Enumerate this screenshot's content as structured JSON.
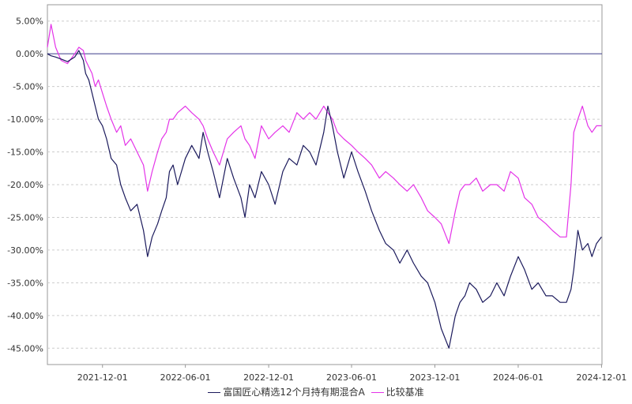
{
  "chart_data": {
    "type": "line",
    "title": "",
    "xlabel": "",
    "ylabel": "",
    "x_ticks": [
      "2021-12-01",
      "2022-06-01",
      "2022-12-01",
      "2023-06-01",
      "2023-12-01",
      "2024-06-01",
      "2024-12-01"
    ],
    "x_range": [
      "2021-08-02",
      "2024-12-02"
    ],
    "y_ticks": [
      "5.00%",
      "0.00%",
      "-5.00%",
      "-10.00%",
      "-15.00%",
      "-20.00%",
      "-25.00%",
      "-30.00%",
      "-35.00%",
      "-40.00%",
      "-45.00%"
    ],
    "ylim": [
      -47.5,
      7.5
    ],
    "grid": true,
    "legend_position": "bottom",
    "zero_line": true,
    "colors": {
      "fund": "#1b1a5c",
      "benchmark": "#e433e8",
      "grid": "#cccccc",
      "zero_line": "#3b3b8a"
    },
    "series": [
      {
        "name": "富国匠心精选12个月持有期混合A",
        "x": [
          "2021-08-02",
          "2021-08-10",
          "2021-08-20",
          "2021-09-01",
          "2021-09-15",
          "2021-10-01",
          "2021-10-10",
          "2021-10-20",
          "2021-10-25",
          "2021-11-01",
          "2021-11-08",
          "2021-11-15",
          "2021-11-22",
          "2021-12-01",
          "2021-12-10",
          "2021-12-20",
          "2022-01-01",
          "2022-01-10",
          "2022-01-20",
          "2022-02-01",
          "2022-02-15",
          "2022-03-01",
          "2022-03-10",
          "2022-03-20",
          "2022-04-01",
          "2022-04-10",
          "2022-04-20",
          "2022-04-27",
          "2022-05-05",
          "2022-05-15",
          "2022-06-01",
          "2022-06-15",
          "2022-07-01",
          "2022-07-10",
          "2022-07-20",
          "2022-08-01",
          "2022-08-15",
          "2022-09-01",
          "2022-09-15",
          "2022-10-01",
          "2022-10-10",
          "2022-10-20",
          "2022-11-01",
          "2022-11-15",
          "2022-12-01",
          "2022-12-15",
          "2023-01-01",
          "2023-01-15",
          "2023-02-01",
          "2023-02-15",
          "2023-03-01",
          "2023-03-15",
          "2023-04-01",
          "2023-04-10",
          "2023-04-20",
          "2023-05-01",
          "2023-05-15",
          "2023-06-01",
          "2023-06-15",
          "2023-07-01",
          "2023-07-15",
          "2023-08-01",
          "2023-08-15",
          "2023-09-01",
          "2023-09-15",
          "2023-10-01",
          "2023-10-15",
          "2023-11-01",
          "2023-11-15",
          "2023-12-01",
          "2023-12-15",
          "2024-01-01",
          "2024-01-15",
          "2024-01-25",
          "2024-02-05",
          "2024-02-15",
          "2024-03-01",
          "2024-03-15",
          "2024-04-01",
          "2024-04-15",
          "2024-05-01",
          "2024-05-15",
          "2024-06-01",
          "2024-06-15",
          "2024-07-01",
          "2024-07-15",
          "2024-08-01",
          "2024-08-15",
          "2024-09-01",
          "2024-09-15",
          "2024-09-25",
          "2024-10-01",
          "2024-10-10",
          "2024-10-20",
          "2024-11-01",
          "2024-11-10",
          "2024-11-20",
          "2024-12-01"
        ],
        "values": [
          0,
          -0.3,
          -0.5,
          -0.8,
          -1.2,
          -0.5,
          0.5,
          -1,
          -3,
          -4,
          -6,
          -8,
          -10,
          -11,
          -13,
          -16,
          -17,
          -20,
          -22,
          -24,
          -23,
          -27,
          -31,
          -28,
          -26,
          -24,
          -22,
          -18,
          -17,
          -20,
          -16,
          -14,
          -16,
          -12,
          -15,
          -18,
          -22,
          -16,
          -19,
          -22,
          -25,
          -20,
          -22,
          -18,
          -20,
          -23,
          -18,
          -16,
          -17,
          -14,
          -15,
          -17,
          -12,
          -8,
          -11,
          -15,
          -19,
          -15,
          -18,
          -21,
          -24,
          -27,
          -29,
          -30,
          -32,
          -30,
          -32,
          -34,
          -35,
          -38,
          -42,
          -45,
          -40,
          -38,
          -37,
          -35,
          -36,
          -38,
          -37,
          -35,
          -37,
          -34,
          -31,
          -33,
          -36,
          -35,
          -37,
          -37,
          -38,
          -38,
          -36,
          -33,
          -27,
          -30,
          -29,
          -31,
          -29,
          -28
        ]
      },
      {
        "name": "比较基准",
        "x": [
          "2021-08-02",
          "2021-08-10",
          "2021-08-20",
          "2021-09-01",
          "2021-09-15",
          "2021-10-01",
          "2021-10-10",
          "2021-10-20",
          "2021-10-25",
          "2021-11-01",
          "2021-11-08",
          "2021-11-15",
          "2021-11-22",
          "2021-12-01",
          "2021-12-10",
          "2021-12-20",
          "2022-01-01",
          "2022-01-10",
          "2022-01-20",
          "2022-02-01",
          "2022-02-15",
          "2022-03-01",
          "2022-03-10",
          "2022-03-20",
          "2022-04-01",
          "2022-04-10",
          "2022-04-20",
          "2022-04-27",
          "2022-05-05",
          "2022-05-15",
          "2022-06-01",
          "2022-06-15",
          "2022-07-01",
          "2022-07-10",
          "2022-07-20",
          "2022-08-01",
          "2022-08-15",
          "2022-09-01",
          "2022-09-15",
          "2022-10-01",
          "2022-10-10",
          "2022-10-20",
          "2022-11-01",
          "2022-11-15",
          "2022-12-01",
          "2022-12-15",
          "2023-01-01",
          "2023-01-15",
          "2023-02-01",
          "2023-02-15",
          "2023-03-01",
          "2023-03-15",
          "2023-04-01",
          "2023-04-10",
          "2023-04-20",
          "2023-05-01",
          "2023-05-15",
          "2023-06-01",
          "2023-06-15",
          "2023-07-01",
          "2023-07-15",
          "2023-08-01",
          "2023-08-15",
          "2023-09-01",
          "2023-09-15",
          "2023-10-01",
          "2023-10-15",
          "2023-11-01",
          "2023-11-15",
          "2023-12-01",
          "2023-12-15",
          "2024-01-01",
          "2024-01-15",
          "2024-01-25",
          "2024-02-05",
          "2024-02-15",
          "2024-03-01",
          "2024-03-15",
          "2024-04-01",
          "2024-04-15",
          "2024-05-01",
          "2024-05-15",
          "2024-06-01",
          "2024-06-15",
          "2024-07-01",
          "2024-07-15",
          "2024-08-01",
          "2024-08-15",
          "2024-09-01",
          "2024-09-15",
          "2024-09-25",
          "2024-10-01",
          "2024-10-10",
          "2024-10-20",
          "2024-11-01",
          "2024-11-10",
          "2024-11-20",
          "2024-12-01"
        ],
        "values": [
          1,
          4.5,
          1,
          -1,
          -1.5,
          0,
          1,
          0.5,
          -1,
          -2,
          -3,
          -5,
          -4,
          -6,
          -8,
          -10,
          -12,
          -11,
          -14,
          -13,
          -15,
          -17,
          -21,
          -18,
          -15,
          -13,
          -12,
          -10,
          -10,
          -9,
          -8,
          -9,
          -10,
          -11,
          -13,
          -15,
          -17,
          -13,
          -12,
          -11,
          -13,
          -14,
          -16,
          -11,
          -13,
          -12,
          -11,
          -12,
          -9,
          -10,
          -9,
          -10,
          -8,
          -9,
          -10,
          -12,
          -13,
          -14,
          -15,
          -16,
          -17,
          -19,
          -18,
          -19,
          -20,
          -21,
          -20,
          -22,
          -24,
          -25,
          -26,
          -29,
          -24,
          -21,
          -20,
          -20,
          -19,
          -21,
          -20,
          -20,
          -21,
          -18,
          -19,
          -22,
          -23,
          -25,
          -26,
          -27,
          -28,
          -28,
          -20,
          -12,
          -10,
          -8,
          -11,
          -12,
          -11,
          -11
        ]
      }
    ]
  }
}
